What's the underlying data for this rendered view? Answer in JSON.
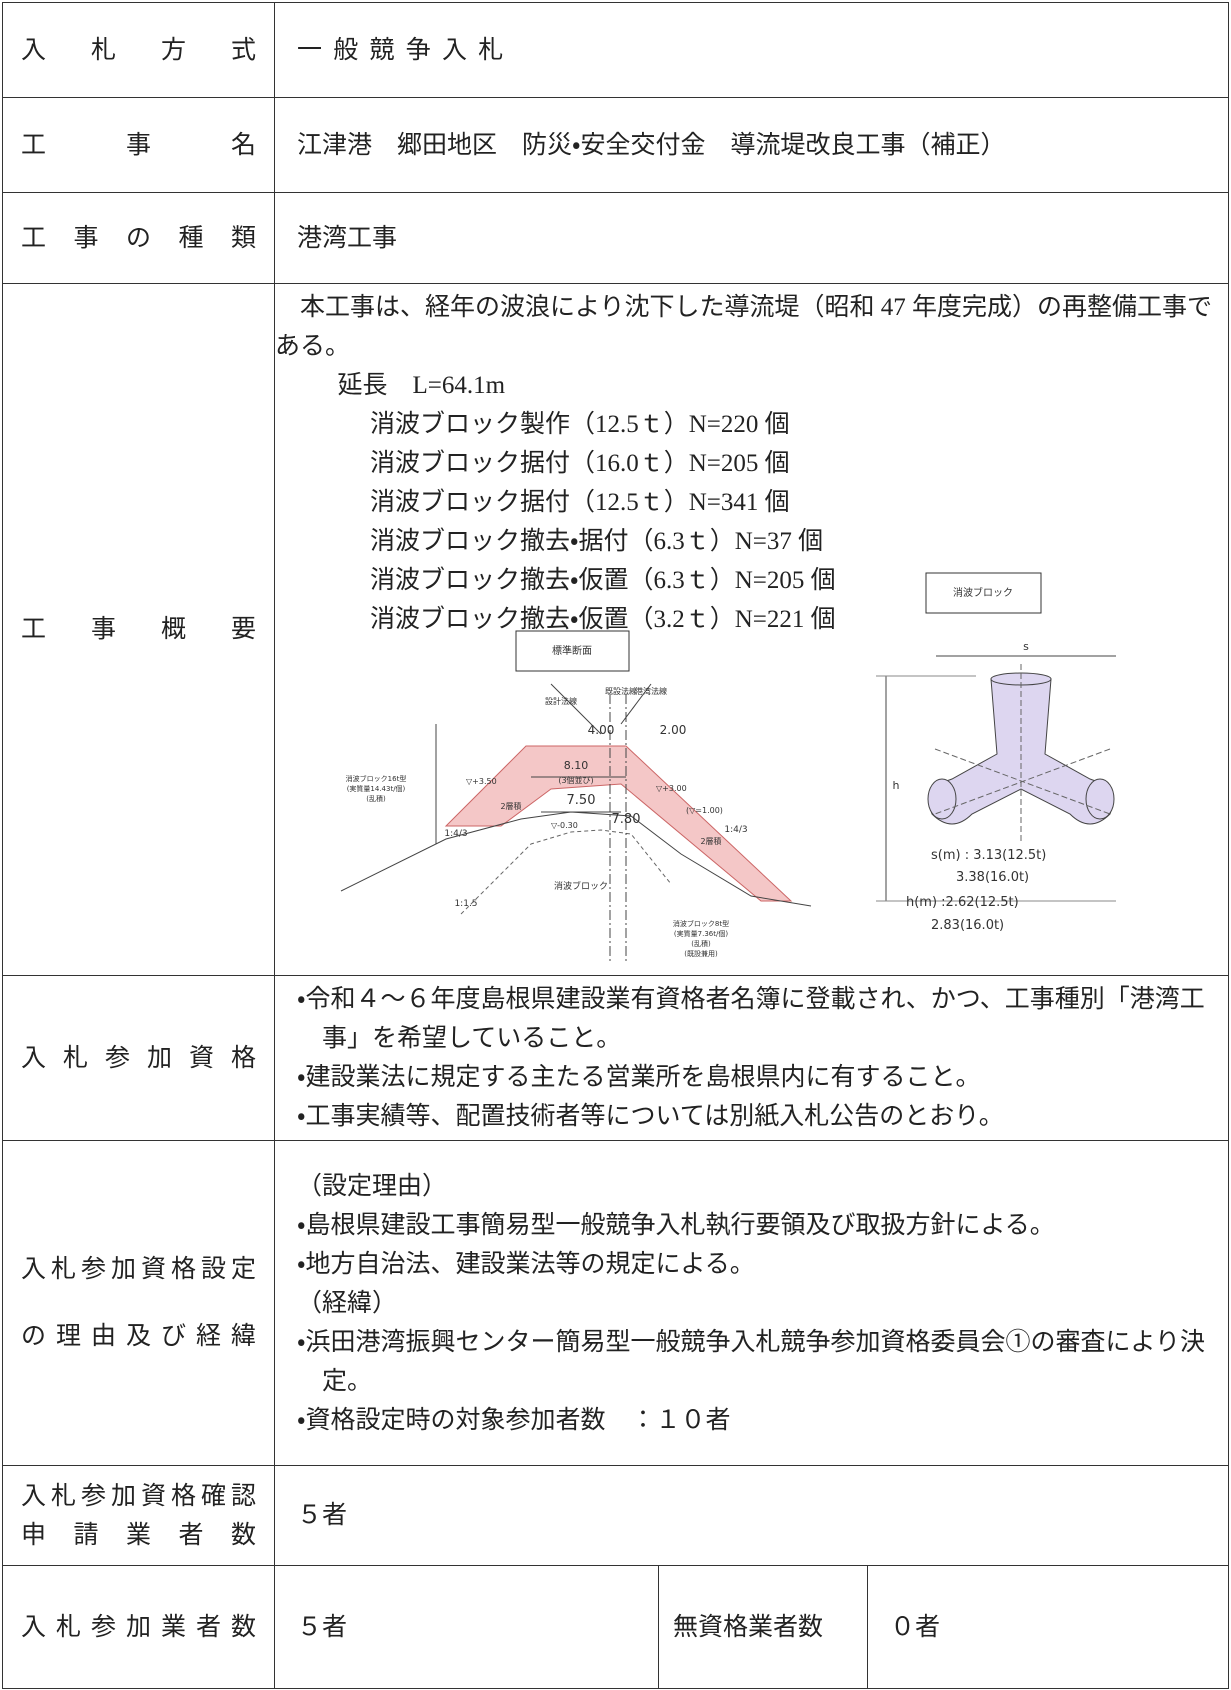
{
  "rows": [
    {
      "label": [
        "入札方式"
      ],
      "content": [
        "一般競争入札"
      ]
    },
    {
      "label": [
        "工事名"
      ],
      "content": [
        "江津港　郷田地区　防災・安全交付金　導流堤改良工事（補正）"
      ]
    },
    {
      "label": [
        "工事の種類"
      ],
      "content": [
        "港湾工事"
      ]
    },
    {
      "label": [
        "工事概要"
      ],
      "content": [
        "本工事は、経年の波浪により沈下した導流堤（昭和 47 年度完成）の再整備工事である。",
        "延長　L=64.1m",
        "消波ブロック製作（12.5ｔ）N=220 個",
        "消波ブロック据付（16.0ｔ）N=205 個",
        "消波ブロック据付（12.5ｔ）N=341 個",
        "消波ブロック撤去・据付（6.3ｔ）N=37 個",
        "消波ブロック撤去・仮置（6.3ｔ）N=205 個",
        "消波ブロック撤去・仮置（3.2ｔ）N=221 個"
      ]
    },
    {
      "label": [
        "入札参加資格"
      ],
      "content": [
        "・令和４～６年度島根県建設業有資格者名簿に登載され、かつ、工事種別「港湾工事」を希望していること。",
        "・建設業法に規定する主たる営業所を島根県内に有すること。",
        "・工事実績等、配置技術者等については別紙入札公告のとおり。"
      ]
    },
    {
      "label": [
        "入札参加資格設定",
        "の理由及び経緯"
      ],
      "content": [
        "（設定理由）",
        "・島根県建設工事簡易型一般競争入札執行要領及び取扱方針による。",
        "・地方自治法、建設業法等の規定による。",
        "（経緯）",
        "・浜田港湾振興センター簡易型一般競争入札競争参加資格委員会①の審査により決定。",
        "・資格設定時の対象参加者数　：１０者"
      ]
    },
    {
      "label": [
        "入札参加資格確認",
        "申請業者数"
      ],
      "content": [
        "５者"
      ]
    }
  ],
  "last_row": {
    "label": "入札参加業者数",
    "value": "５者",
    "label2": "無資格業者数",
    "value2": "０者"
  },
  "figure": {
    "labels": [
      "消波ブロック",
      "標準断面",
      "8.10",
      "(3個並び)",
      "7.50",
      "7.80",
      "4.00",
      "2.00",
      "▽+3.50",
      "▽+3.00",
      "(▽=1.00)",
      "▽-0.30",
      "消波ブロック",
      "1:4/3",
      "1:1.5",
      "1:4/3",
      "消波ブロック16t型",
      "(実質量14.43t/個)",
      "(乱積)",
      "消波ブロック8t型",
      "(実質量7.36t/個)",
      "(乱積)",
      "(既設兼用)",
      "2層積",
      "2層積",
      "設計法線",
      "既設法線",
      "港湾法線",
      "s",
      "h",
      "s(m) : 3.13(12.5t)",
      "3.38(16.0t)",
      "h(m) :2.62(12.5t)",
      "2.83(16.0t)"
    ]
  }
}
